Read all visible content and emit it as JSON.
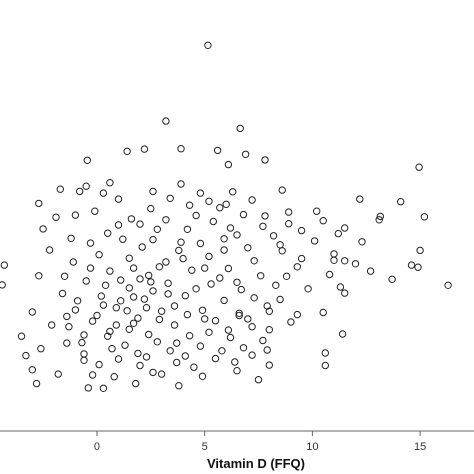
{
  "chart_data": {
    "type": "scatter",
    "title": "",
    "xlabel": "Vitamin D (FFQ)",
    "ylabel": "",
    "xlim": [
      -4.5,
      17.5
    ],
    "ylim": [
      0,
      100
    ],
    "x_ticks": [
      {
        "value": 0,
        "label": "0"
      },
      {
        "value": 5,
        "label": "5"
      },
      {
        "value": 10,
        "label": "10"
      },
      {
        "value": 15,
        "label": "15"
      }
    ],
    "grid": false,
    "legend": "none",
    "marker": "open-circle",
    "marker_color": "#222222",
    "points": [
      [
        5.15,
        89.5
      ],
      [
        3.2,
        71.9
      ],
      [
        6.65,
        70.2
      ],
      [
        -0.45,
        62.8
      ],
      [
        14.95,
        61.2
      ],
      [
        1.4,
        64.9
      ],
      [
        2.2,
        65.4
      ],
      [
        3.9,
        65.5
      ],
      [
        6.1,
        61.8
      ],
      [
        7.8,
        62.9
      ],
      [
        6.9,
        64.2
      ],
      [
        5.6,
        65.1
      ],
      [
        13.1,
        49.0
      ],
      [
        14.1,
        53.2
      ],
      [
        13.15,
        49.8
      ],
      [
        12.2,
        53.8
      ],
      [
        10.2,
        51.0
      ],
      [
        8.9,
        50.8
      ],
      [
        10.5,
        48.8
      ],
      [
        11.5,
        47.1
      ],
      [
        9.5,
        46.5
      ],
      [
        8.9,
        48.1
      ],
      [
        15.2,
        49.7
      ],
      [
        15.0,
        41.9
      ],
      [
        12.3,
        43.9
      ],
      [
        11.2,
        45.8
      ],
      [
        11.0,
        41.1
      ],
      [
        10.1,
        44.1
      ],
      [
        9.5,
        40.0
      ],
      [
        10.8,
        36.3
      ],
      [
        11.0,
        39.6
      ],
      [
        12.0,
        38.8
      ],
      [
        12.7,
        37.1
      ],
      [
        11.5,
        39.5
      ],
      [
        14.6,
        38.5
      ],
      [
        16.3,
        33.8
      ],
      [
        13.7,
        35.2
      ],
      [
        14.9,
        38.0
      ],
      [
        11.3,
        33.4
      ],
      [
        9.8,
        33.0
      ],
      [
        8.5,
        30.5
      ],
      [
        7.9,
        29.0
      ],
      [
        9.3,
        27.0
      ],
      [
        9.0,
        25.3
      ],
      [
        10.5,
        27.5
      ],
      [
        8.0,
        23.5
      ],
      [
        10.6,
        18.1
      ],
      [
        10.6,
        15.2
      ],
      [
        11.5,
        32.0
      ],
      [
        11.4,
        22.5
      ],
      [
        -4.3,
        38.5
      ],
      [
        -4.4,
        33.9
      ],
      [
        -2.5,
        46.9
      ],
      [
        -3.5,
        22.0
      ],
      [
        -3.3,
        17.5
      ],
      [
        -1.7,
        56.1
      ],
      [
        -0.8,
        55.6
      ],
      [
        -0.5,
        56.8
      ],
      [
        -1.0,
        50.1
      ],
      [
        -1.9,
        49.6
      ],
      [
        -2.7,
        52.8
      ],
      [
        -1.2,
        44.7
      ],
      [
        -2.2,
        42.0
      ],
      [
        -2.7,
        36.0
      ],
      [
        -1.6,
        31.9
      ],
      [
        -3.0,
        27.6
      ],
      [
        -1.3,
        24.2
      ],
      [
        -2.6,
        19.1
      ],
      [
        -0.6,
        16.4
      ],
      [
        -1.4,
        20.4
      ],
      [
        -0.2,
        13.0
      ],
      [
        -3.0,
        14.2
      ],
      [
        -0.4,
        10.0
      ],
      [
        0.3,
        9.9
      ],
      [
        0.8,
        12.6
      ],
      [
        -2.8,
        11.0
      ],
      [
        -1.8,
        13.2
      ],
      [
        -0.6,
        17.9
      ],
      [
        0.6,
        23.1
      ],
      [
        1.8,
        11.0
      ],
      [
        2.6,
        13.6
      ],
      [
        3.7,
        15.9
      ],
      [
        4.5,
        14.8
      ],
      [
        5.5,
        16.8
      ],
      [
        6.5,
        14.0
      ],
      [
        7.2,
        17.6
      ],
      [
        4.8,
        19.7
      ],
      [
        2.8,
        20.7
      ],
      [
        1.3,
        19.9
      ],
      [
        8.0,
        15.3
      ],
      [
        7.5,
        11.9
      ],
      [
        3.8,
        10.5
      ],
      [
        0.3,
        55.2
      ],
      [
        1.0,
        53.8
      ],
      [
        -0.1,
        51.0
      ],
      [
        1.6,
        49.2
      ],
      [
        2.5,
        51.6
      ],
      [
        4.3,
        52.4
      ],
      [
        3.4,
        54.0
      ],
      [
        2.6,
        55.6
      ],
      [
        0.6,
        57.6
      ],
      [
        8.6,
        55.9
      ],
      [
        6.3,
        55.5
      ],
      [
        7.2,
        53.6
      ],
      [
        5.7,
        51.8
      ],
      [
        7.8,
        49.9
      ],
      [
        6.8,
        50.2
      ],
      [
        4.8,
        55.2
      ],
      [
        4.6,
        50.0
      ],
      [
        2.8,
        46.8
      ],
      [
        1.2,
        44.5
      ],
      [
        -0.3,
        43.6
      ],
      [
        3.9,
        43.8
      ],
      [
        5.9,
        44.6
      ],
      [
        7.0,
        42.5
      ],
      [
        8.2,
        45.3
      ],
      [
        6.2,
        47.1
      ],
      [
        4.2,
        46.8
      ],
      [
        2.1,
        42.7
      ],
      [
        0.1,
        40.9
      ],
      [
        -1.1,
        39.2
      ],
      [
        1.5,
        40.1
      ],
      [
        3.2,
        39.2
      ],
      [
        5.2,
        40.5
      ],
      [
        7.3,
        39.5
      ],
      [
        8.6,
        41.8
      ],
      [
        0.6,
        37.1
      ],
      [
        2.4,
        36.1
      ],
      [
        4.4,
        37.3
      ],
      [
        6.1,
        37.7
      ],
      [
        7.6,
        36.0
      ],
      [
        -0.5,
        34.8
      ],
      [
        1.5,
        33.2
      ],
      [
        3.3,
        34.3
      ],
      [
        5.3,
        34.1
      ],
      [
        6.7,
        32.8
      ],
      [
        8.3,
        33.8
      ],
      [
        0.2,
        31.3
      ],
      [
        2.2,
        30.6
      ],
      [
        4.1,
        31.4
      ],
      [
        5.9,
        30.3
      ],
      [
        7.3,
        30.9
      ],
      [
        -1.0,
        28.1
      ],
      [
        0.9,
        28.6
      ],
      [
        3.0,
        27.8
      ],
      [
        4.9,
        28.0
      ],
      [
        6.6,
        27.3
      ],
      [
        -0.2,
        25.5
      ],
      [
        1.7,
        25.0
      ],
      [
        3.6,
        24.6
      ],
      [
        5.5,
        25.6
      ],
      [
        7.2,
        24.2
      ],
      [
        0.5,
        22.0
      ],
      [
        2.4,
        22.4
      ],
      [
        4.3,
        22.1
      ],
      [
        6.2,
        21.7
      ],
      [
        7.7,
        21.0
      ],
      [
        -0.7,
        20.5
      ],
      [
        1.9,
        18.0
      ],
      [
        3.4,
        18.6
      ],
      [
        5.2,
        22.9
      ],
      [
        6.8,
        19.3
      ],
      [
        0.1,
        15.4
      ],
      [
        1.0,
        16.7
      ],
      [
        2.0,
        15.2
      ],
      [
        3.0,
        13.2
      ],
      [
        4.9,
        12.7
      ],
      [
        1.1,
        30.2
      ],
      [
        1.4,
        27.9
      ],
      [
        1.9,
        26.2
      ],
      [
        2.6,
        32.5
      ],
      [
        2.0,
        35.3
      ],
      [
        1.1,
        35.0
      ],
      [
        0.4,
        33.8
      ],
      [
        1.7,
        31.1
      ],
      [
        2.3,
        28.6
      ],
      [
        1.5,
        23.6
      ],
      [
        0.9,
        24.6
      ],
      [
        0.3,
        29.2
      ],
      [
        2.9,
        25.9
      ],
      [
        1.7,
        37.8
      ],
      [
        2.9,
        38.1
      ],
      [
        3.6,
        29.0
      ],
      [
        4.6,
        33.0
      ],
      [
        5.7,
        35.5
      ],
      [
        3.8,
        41.9
      ],
      [
        4.8,
        43.5
      ],
      [
        5.9,
        42.0
      ],
      [
        6.5,
        45.5
      ],
      [
        5.4,
        48.6
      ],
      [
        3.2,
        49.0
      ],
      [
        2.0,
        48.0
      ],
      [
        1.0,
        47.8
      ],
      [
        0.5,
        45.9
      ],
      [
        2.6,
        44.4
      ],
      [
        4.0,
        40.0
      ],
      [
        5.0,
        37.8
      ],
      [
        6.5,
        34.5
      ],
      [
        7.0,
        26.0
      ],
      [
        8.0,
        27.8
      ],
      [
        8.8,
        35.9
      ],
      [
        9.3,
        38.1
      ],
      [
        8.5,
        43.2
      ],
      [
        7.7,
        47.5
      ],
      [
        6.0,
        52.6
      ],
      [
        5.2,
        53.3
      ],
      [
        3.9,
        57.3
      ],
      [
        4.2,
        27.0
      ],
      [
        5.0,
        26.0
      ],
      [
        6.1,
        23.4
      ],
      [
        6.6,
        26.8
      ],
      [
        3.3,
        31.8
      ],
      [
        2.5,
        34.6
      ],
      [
        -0.3,
        37.8
      ],
      [
        -1.5,
        35.9
      ],
      [
        -0.9,
        30.2
      ],
      [
        0.0,
        26.8
      ],
      [
        -1.4,
        26.6
      ],
      [
        -2.1,
        24.6
      ],
      [
        -0.6,
        22.3
      ],
      [
        0.7,
        19.1
      ],
      [
        2.3,
        17.2
      ],
      [
        3.7,
        20.4
      ],
      [
        4.1,
        17.4
      ],
      [
        5.8,
        18.6
      ],
      [
        6.4,
        16.0
      ],
      [
        7.9,
        18.8
      ]
    ]
  }
}
